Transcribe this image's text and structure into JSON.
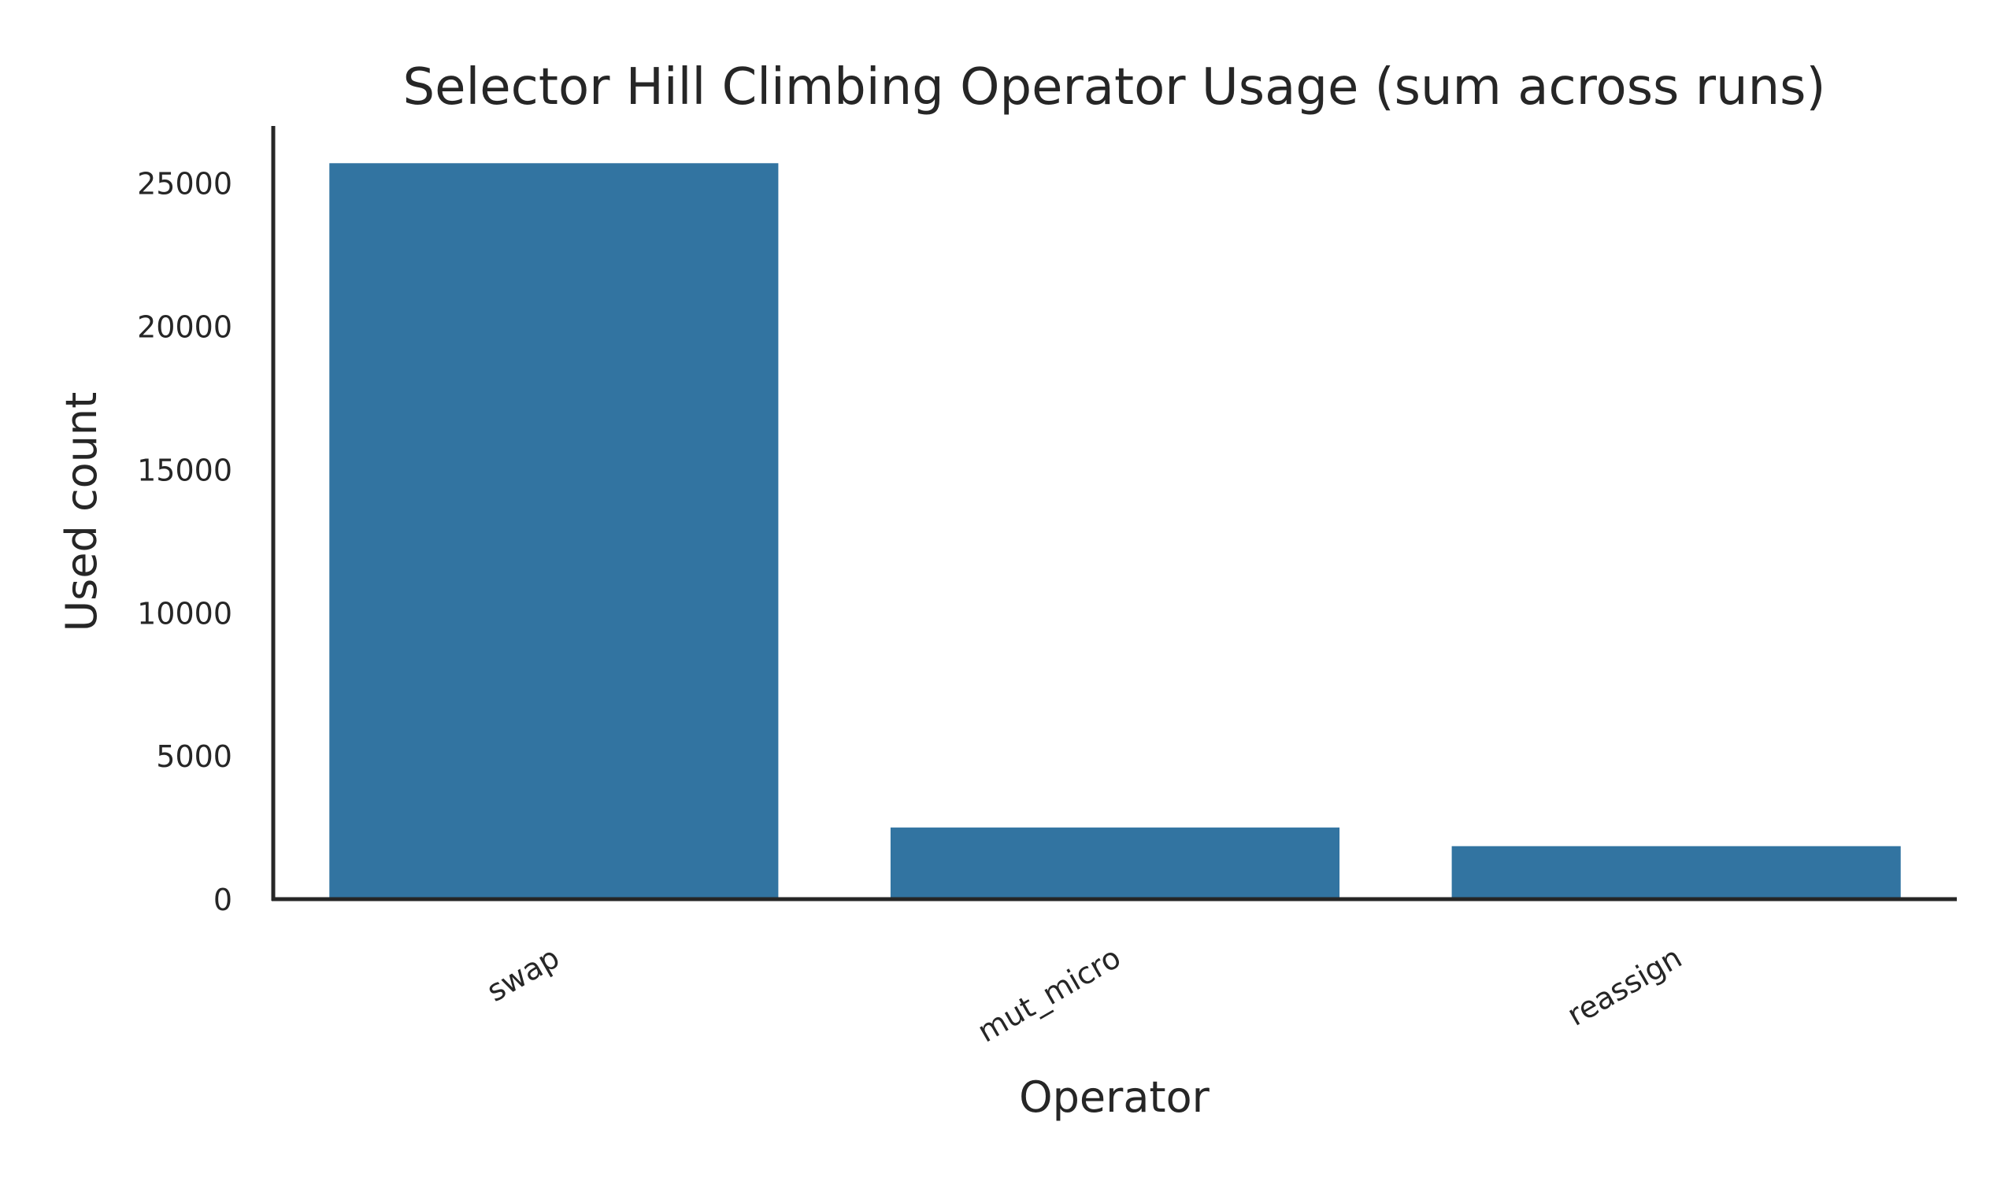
{
  "chart_data": {
    "type": "bar",
    "title": "Selector Hill Climbing Operator Usage (sum across runs)",
    "xlabel": "Operator",
    "ylabel": "Used count",
    "categories": [
      "swap",
      "mut_micro",
      "reassign"
    ],
    "values": [
      25700,
      2500,
      1850
    ],
    "ylim": [
      0,
      27000
    ],
    "yticks": [
      0,
      5000,
      10000,
      15000,
      20000,
      25000
    ],
    "ytick_labels": [
      "0",
      "5000",
      "10000",
      "15000",
      "20000",
      "25000"
    ],
    "bar_color": "#3274a1",
    "axis_color": "#262626",
    "grid": false,
    "legend": "none"
  }
}
